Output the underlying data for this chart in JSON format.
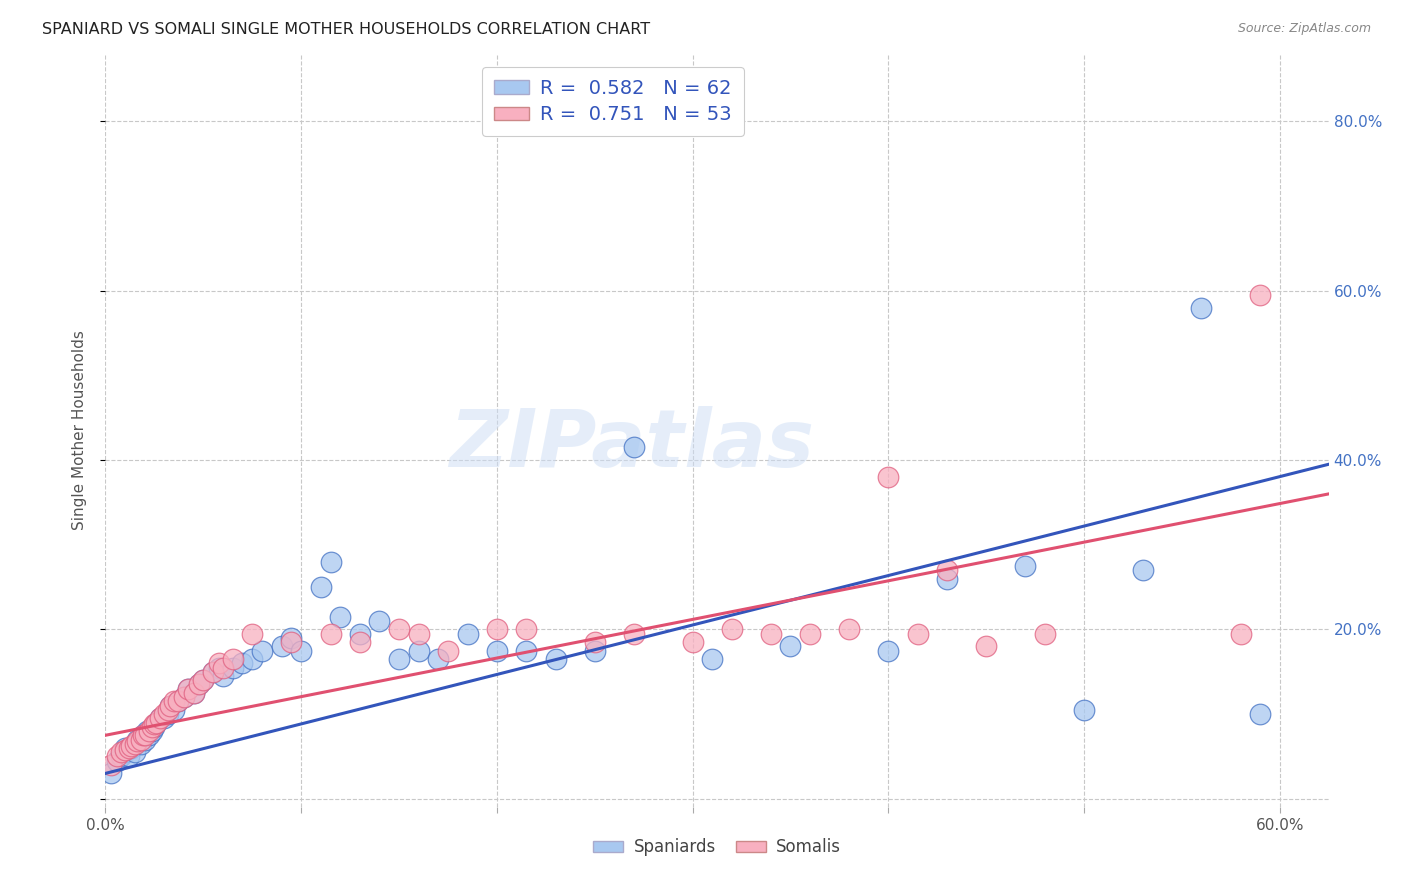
{
  "title": "SPANIARD VS SOMALI SINGLE MOTHER HOUSEHOLDS CORRELATION CHART",
  "source": "Source: ZipAtlas.com",
  "ylabel": "Single Mother Households",
  "xlim": [
    0.0,
    0.625
  ],
  "ylim": [
    -0.01,
    0.88
  ],
  "xtick_positions": [
    0.0,
    0.1,
    0.2,
    0.3,
    0.4,
    0.5,
    0.6
  ],
  "xticklabels": [
    "0.0%",
    "",
    "",
    "",
    "",
    "",
    "60.0%"
  ],
  "ytick_positions": [
    0.0,
    0.2,
    0.4,
    0.6,
    0.8
  ],
  "yticklabels_right": [
    "",
    "20.0%",
    "40.0%",
    "60.0%",
    "80.0%"
  ],
  "background_color": "#ffffff",
  "grid_color": "#c8c8c8",
  "watermark_text": "ZIPatlas",
  "legend_line1": "R =  0.582   N = 62",
  "legend_line2": "R =  0.751   N = 53",
  "legend_color1": "#a8c8f0",
  "legend_color2": "#f8b0c0",
  "spaniard_fill": "#a8c8f0",
  "spaniard_edge": "#4472c4",
  "somali_fill": "#f8b0c0",
  "somali_edge": "#e06080",
  "sp_line_color": "#3355bb",
  "so_line_color": "#e05070",
  "sp_line_x0": 0.0,
  "sp_line_y0": 0.03,
  "sp_line_x1": 0.625,
  "sp_line_y1": 0.395,
  "so_line_x0": 0.0,
  "so_line_y0": 0.075,
  "so_line_x1": 0.625,
  "so_line_y1": 0.36,
  "spaniards_x": [
    0.003,
    0.006,
    0.008,
    0.01,
    0.01,
    0.012,
    0.013,
    0.015,
    0.015,
    0.016,
    0.018,
    0.019,
    0.02,
    0.021,
    0.022,
    0.024,
    0.025,
    0.026,
    0.028,
    0.03,
    0.032,
    0.033,
    0.035,
    0.037,
    0.04,
    0.042,
    0.045,
    0.048,
    0.05,
    0.055,
    0.058,
    0.06,
    0.065,
    0.07,
    0.075,
    0.08,
    0.09,
    0.095,
    0.1,
    0.11,
    0.115,
    0.12,
    0.13,
    0.14,
    0.15,
    0.16,
    0.17,
    0.185,
    0.2,
    0.215,
    0.23,
    0.25,
    0.27,
    0.31,
    0.35,
    0.4,
    0.43,
    0.47,
    0.5,
    0.53,
    0.56,
    0.59
  ],
  "spaniards_y": [
    0.03,
    0.045,
    0.05,
    0.055,
    0.06,
    0.05,
    0.06,
    0.055,
    0.065,
    0.07,
    0.065,
    0.075,
    0.07,
    0.08,
    0.075,
    0.08,
    0.085,
    0.09,
    0.095,
    0.095,
    0.1,
    0.11,
    0.105,
    0.115,
    0.12,
    0.13,
    0.125,
    0.135,
    0.14,
    0.15,
    0.155,
    0.145,
    0.155,
    0.16,
    0.165,
    0.175,
    0.18,
    0.19,
    0.175,
    0.25,
    0.28,
    0.215,
    0.195,
    0.21,
    0.165,
    0.175,
    0.165,
    0.195,
    0.175,
    0.175,
    0.165,
    0.175,
    0.415,
    0.165,
    0.18,
    0.175,
    0.26,
    0.275,
    0.105,
    0.27,
    0.58,
    0.1
  ],
  "somalis_x": [
    0.003,
    0.006,
    0.008,
    0.01,
    0.012,
    0.013,
    0.015,
    0.016,
    0.018,
    0.019,
    0.02,
    0.022,
    0.024,
    0.025,
    0.026,
    0.028,
    0.03,
    0.032,
    0.033,
    0.035,
    0.037,
    0.04,
    0.042,
    0.045,
    0.048,
    0.05,
    0.055,
    0.058,
    0.06,
    0.065,
    0.075,
    0.095,
    0.115,
    0.13,
    0.15,
    0.16,
    0.175,
    0.2,
    0.215,
    0.25,
    0.27,
    0.3,
    0.32,
    0.34,
    0.36,
    0.38,
    0.4,
    0.415,
    0.43,
    0.45,
    0.48,
    0.58,
    0.59
  ],
  "somalis_y": [
    0.04,
    0.05,
    0.055,
    0.058,
    0.06,
    0.062,
    0.065,
    0.068,
    0.07,
    0.075,
    0.075,
    0.08,
    0.085,
    0.088,
    0.09,
    0.095,
    0.1,
    0.105,
    0.11,
    0.115,
    0.115,
    0.12,
    0.13,
    0.125,
    0.135,
    0.14,
    0.15,
    0.16,
    0.155,
    0.165,
    0.195,
    0.185,
    0.195,
    0.185,
    0.2,
    0.195,
    0.175,
    0.2,
    0.2,
    0.185,
    0.195,
    0.185,
    0.2,
    0.195,
    0.195,
    0.2,
    0.38,
    0.195,
    0.27,
    0.18,
    0.195,
    0.195,
    0.595
  ]
}
